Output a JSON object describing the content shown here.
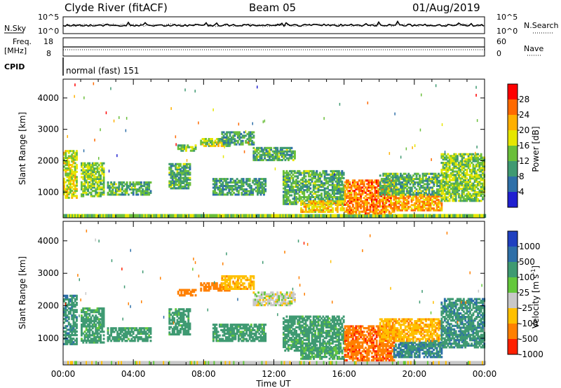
{
  "header": {
    "site": "Clyde River (fitACF)",
    "beam": "Beam 05",
    "date": "01/Aug/2019"
  },
  "strip": {
    "nsky_label": "N.Sky",
    "nsky_ticks": [
      "10^5",
      "10^0"
    ],
    "nsearch_label": "N.Search",
    "nsearch_ticks": [
      "10^5",
      "10^0"
    ],
    "freq_label_1": "Freq.",
    "freq_label_2": "[MHz]",
    "freq_ticks": [
      "18",
      "8"
    ],
    "nave_label": "Nave",
    "nave_ticks": [
      "60",
      "0"
    ],
    "cpid_label": "CPID",
    "cpid_value": "normal (fast) 151"
  },
  "axes": {
    "ylabel": "Slant Range [km]",
    "xlabel": "Time UT",
    "yticks": [
      "4000",
      "3000",
      "2000",
      "1000"
    ],
    "xticks": [
      "00:00",
      "04:00",
      "08:00",
      "12:00",
      "16:00",
      "20:00",
      "00:00"
    ]
  },
  "chart_data": [
    {
      "type": "heatmap",
      "title": "Power",
      "colorbar_label": "Power [dB]",
      "colorbar_ticks": [
        "28",
        "24",
        "20",
        "16",
        "12",
        "8",
        "4"
      ],
      "colors": [
        "#ff0000",
        "#ff6a00",
        "#ffb000",
        "#e6e600",
        "#6abf3a",
        "#3f9a72",
        "#2e6fa8",
        "#2020d0"
      ],
      "xlim": [
        0,
        24
      ],
      "ylim": [
        180,
        4600
      ],
      "regions": [
        {
          "t0": 0.0,
          "t1": 0.8,
          "r0": 800,
          "r1": 2300,
          "level": 0.55
        },
        {
          "t0": 1.0,
          "t1": 2.3,
          "r0": 850,
          "r1": 1900,
          "level": 0.45
        },
        {
          "t0": 2.5,
          "t1": 5.0,
          "r0": 900,
          "r1": 1300,
          "level": 0.35
        },
        {
          "t0": 6.0,
          "t1": 7.2,
          "r0": 1100,
          "r1": 1900,
          "level": 0.35
        },
        {
          "t0": 6.5,
          "t1": 7.5,
          "r0": 2300,
          "r1": 2500,
          "level": 0.45
        },
        {
          "t0": 7.8,
          "t1": 9.5,
          "r0": 2450,
          "r1": 2700,
          "level": 0.5
        },
        {
          "t0": 9.0,
          "t1": 10.8,
          "r0": 2500,
          "r1": 2900,
          "level": 0.3
        },
        {
          "t0": 8.5,
          "t1": 11.5,
          "r0": 900,
          "r1": 1400,
          "level": 0.3
        },
        {
          "t0": 10.8,
          "t1": 13.2,
          "r0": 2000,
          "r1": 2400,
          "level": 0.35
        },
        {
          "t0": 12.5,
          "t1": 16.0,
          "r0": 600,
          "r1": 1700,
          "level": 0.35
        },
        {
          "t0": 13.5,
          "t1": 16.0,
          "r0": 350,
          "r1": 700,
          "level": 0.65
        },
        {
          "t0": 16.0,
          "t1": 18.8,
          "r0": 300,
          "r1": 1400,
          "level": 0.8
        },
        {
          "t0": 18.8,
          "t1": 21.5,
          "r0": 400,
          "r1": 900,
          "level": 0.75
        },
        {
          "t0": 18.0,
          "t1": 21.5,
          "r0": 900,
          "r1": 1600,
          "level": 0.35
        },
        {
          "t0": 21.5,
          "t1": 24.0,
          "r0": 700,
          "r1": 2200,
          "level": 0.45
        }
      ]
    },
    {
      "type": "heatmap",
      "title": "Velocity",
      "colorbar_label": "Velocity [m s^-1]",
      "colorbar_ticks": [
        "1000",
        "500",
        "100",
        "25",
        "-25",
        "-100",
        "-500",
        "-1000"
      ],
      "colors": [
        "#2040c0",
        "#2e6fa8",
        "#3f9a72",
        "#64c83c",
        "#c8c8c8",
        "#ffc000",
        "#ff8000",
        "#ff2000"
      ],
      "xlim": [
        0,
        24
      ],
      "ylim": [
        180,
        4600
      ],
      "regions": [
        {
          "t0": 0.0,
          "t1": 0.8,
          "r0": 800,
          "r1": 2300,
          "value": 400
        },
        {
          "t0": 1.0,
          "t1": 2.3,
          "r0": 850,
          "r1": 1900,
          "value": 150
        },
        {
          "t0": 2.5,
          "t1": 5.0,
          "r0": 900,
          "r1": 1300,
          "value": 150
        },
        {
          "t0": 6.0,
          "t1": 7.2,
          "r0": 1100,
          "r1": 1900,
          "value": 150
        },
        {
          "t0": 6.5,
          "t1": 7.5,
          "r0": 2300,
          "r1": 2500,
          "value": -200
        },
        {
          "t0": 7.8,
          "t1": 9.5,
          "r0": 2450,
          "r1": 2700,
          "value": -200
        },
        {
          "t0": 9.0,
          "t1": 10.8,
          "r0": 2500,
          "r1": 2900,
          "value": -80
        },
        {
          "t0": 8.5,
          "t1": 11.5,
          "r0": 900,
          "r1": 1400,
          "value": 150
        },
        {
          "t0": 10.8,
          "t1": 13.2,
          "r0": 2000,
          "r1": 2400,
          "value": 0
        },
        {
          "t0": 12.5,
          "t1": 16.0,
          "r0": 600,
          "r1": 1700,
          "value": 150
        },
        {
          "t0": 13.5,
          "t1": 16.0,
          "r0": 350,
          "r1": 700,
          "value": 120
        },
        {
          "t0": 16.0,
          "t1": 18.8,
          "r0": 300,
          "r1": 1400,
          "value": -400
        },
        {
          "t0": 18.8,
          "t1": 21.5,
          "r0": 400,
          "r1": 900,
          "value": 500
        },
        {
          "t0": 18.0,
          "t1": 21.5,
          "r0": 900,
          "r1": 1600,
          "value": -80
        },
        {
          "t0": 21.5,
          "t1": 24.0,
          "r0": 700,
          "r1": 2200,
          "value": 400
        }
      ]
    }
  ]
}
